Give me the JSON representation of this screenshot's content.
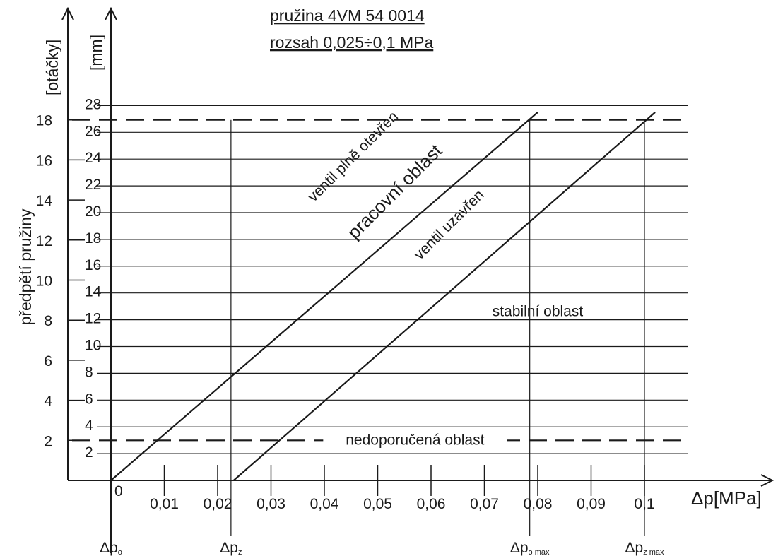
{
  "chart_data": {
    "type": "line",
    "title_lines": [
      "pružina 4VM 54 0014",
      "rozsah 0,025÷0,1 MPa"
    ],
    "x_axis": {
      "label": "Δp[MPa]",
      "range": [
        0,
        0.11
      ],
      "ticks": [
        0.01,
        0.02,
        0.03,
        0.04,
        0.05,
        0.06,
        0.07,
        0.08,
        0.09,
        0.1
      ],
      "tick_labels": [
        "0,01",
        "0,02",
        "0,03",
        "0,04",
        "0,05",
        "0,06",
        "0,07",
        "0,08",
        "0,09",
        "0,1"
      ],
      "origin_label": "0"
    },
    "y_left_axis": {
      "label": "předpětí pružiny",
      "unit": "[otáčky]",
      "ticks": [
        2,
        4,
        6,
        8,
        10,
        12,
        14,
        16,
        18
      ],
      "range": [
        0,
        21.7
      ]
    },
    "y_mm_axis": {
      "unit": "[mm]",
      "ticks": [
        2,
        4,
        6,
        8,
        10,
        12,
        14,
        16,
        18,
        20,
        22,
        24,
        26,
        28
      ],
      "range": [
        0,
        28
      ]
    },
    "grid": "horizontal lines at each mm tick",
    "limit_lines": [
      {
        "axis": "otacky",
        "value": 2,
        "style": "dashed"
      },
      {
        "axis": "otacky",
        "value": 18,
        "style": "dashed"
      }
    ],
    "series": [
      {
        "points": [
          [
            0,
            0
          ],
          [
            0.08,
            27.5
          ]
        ]
      },
      {
        "points": [
          [
            0.023,
            0
          ],
          [
            0.102,
            27.5
          ]
        ]
      }
    ],
    "markers": [
      {
        "label_base": "Δp",
        "label_sub": "o",
        "x": 0
      },
      {
        "label_base": "Δp",
        "label_sub": "z",
        "x": 0.0225
      },
      {
        "label_base": "Δp",
        "label_sub": "o max",
        "x": 0.0785
      },
      {
        "label_base": "Δp",
        "label_sub": "z max",
        "x": 0.1
      }
    ],
    "annotations": [
      {
        "text": "ventil plně otevřen",
        "x": 0.046,
        "y": 16.0,
        "rotate": -45,
        "size": "normal"
      },
      {
        "text": "pracovní oblast",
        "x": 0.054,
        "y": 14.2,
        "rotate": -45,
        "size": "big"
      },
      {
        "text": "ventil uzavřen",
        "x": 0.064,
        "y": 12.6,
        "rotate": -45,
        "size": "normal"
      },
      {
        "text": "stabilní oblast",
        "x": 0.08,
        "y": 8.2,
        "rotate": 0,
        "size": "normal"
      },
      {
        "text": "nedoporučená oblast",
        "x": 0.057,
        "y": 1.78,
        "rotate": 0,
        "size": "normal"
      }
    ]
  }
}
